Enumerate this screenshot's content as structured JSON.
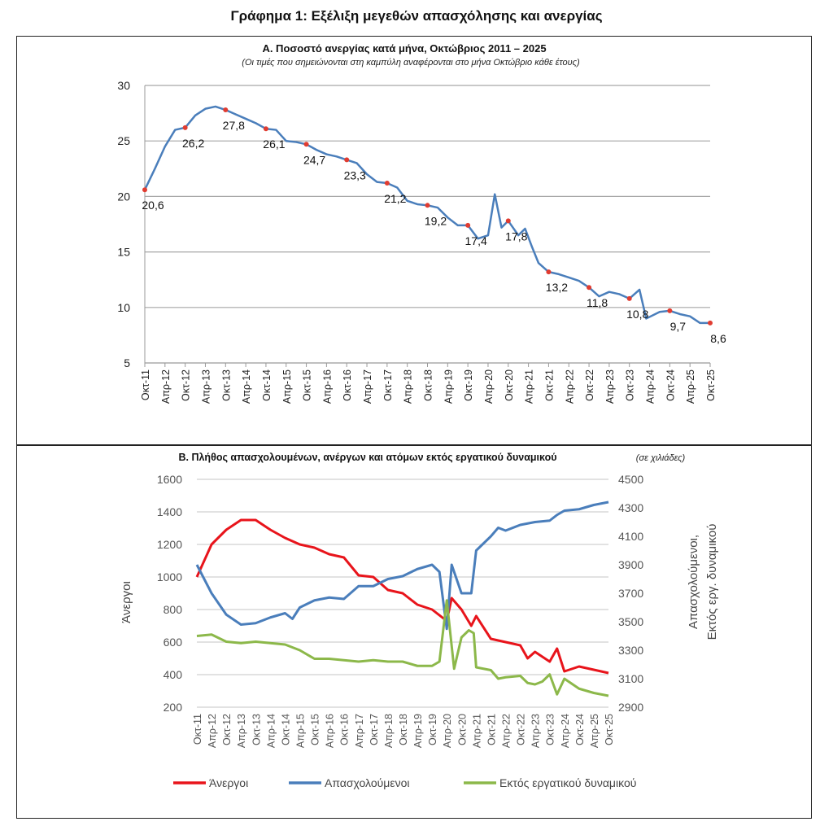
{
  "title": "Γράφημα 1: Εξέλιξη μεγεθών απασχόλησης και ανεργίας",
  "chart_data": [
    {
      "type": "line",
      "title": "Α. Ποσοστό ανεργίας κατά μήνα, Οκτώβριος 2011 – 2025",
      "subtitle": "(Οι τιμές που σημειώνονται στη καμπύλη αναφέρονται στο μήνα Οκτώβριο κάθε έτους)",
      "ylim": [
        5,
        30
      ],
      "yticks": [
        5,
        10,
        15,
        20,
        25,
        30
      ],
      "grid": true,
      "xticks": [
        "Οκτ-11",
        "Απρ-12",
        "Οκτ-12",
        "Απρ-13",
        "Οκτ-13",
        "Απρ-14",
        "Οκτ-14",
        "Απρ-15",
        "Οκτ-15",
        "Απρ-16",
        "Οκτ-16",
        "Απρ-17",
        "Οκτ-17",
        "Απρ-18",
        "Οκτ-18",
        "Απρ-19",
        "Οκτ-19",
        "Απρ-20",
        "Οκτ-20",
        "Απρ-21",
        "Οκτ-21",
        "Απρ-22",
        "Οκτ-22",
        "Απρ-23",
        "Οκτ-23",
        "Απρ-24",
        "Οκτ-24",
        "Απρ-25",
        "Οκτ-25"
      ],
      "line_color": "#4a7ebb",
      "marker_color": "#e03c31",
      "x": [
        "2011-10",
        "2012-01",
        "2012-04",
        "2012-07",
        "2012-10",
        "2013-01",
        "2013-04",
        "2013-07",
        "2013-10",
        "2014-01",
        "2014-04",
        "2014-07",
        "2014-10",
        "2015-01",
        "2015-04",
        "2015-07",
        "2015-10",
        "2016-01",
        "2016-04",
        "2016-07",
        "2016-10",
        "2017-01",
        "2017-04",
        "2017-07",
        "2017-10",
        "2018-01",
        "2018-04",
        "2018-07",
        "2018-10",
        "2019-01",
        "2019-04",
        "2019-07",
        "2019-10",
        "2020-01",
        "2020-04",
        "2020-06",
        "2020-08",
        "2020-10",
        "2021-01",
        "2021-03",
        "2021-05",
        "2021-07",
        "2021-10",
        "2022-01",
        "2022-04",
        "2022-07",
        "2022-10",
        "2023-01",
        "2023-04",
        "2023-07",
        "2023-10",
        "2024-01",
        "2024-03",
        "2024-07",
        "2024-10",
        "2025-01",
        "2025-04",
        "2025-07",
        "2025-10"
      ],
      "y": [
        20.6,
        22.5,
        24.5,
        26.0,
        26.2,
        27.3,
        27.9,
        28.1,
        27.8,
        27.4,
        27.0,
        26.6,
        26.1,
        26.0,
        25.0,
        24.9,
        24.7,
        24.2,
        23.8,
        23.6,
        23.3,
        23.0,
        22.0,
        21.3,
        21.2,
        20.8,
        19.6,
        19.3,
        19.2,
        19.0,
        18.1,
        17.4,
        17.4,
        16.2,
        16.5,
        20.2,
        17.2,
        17.8,
        16.5,
        17.1,
        15.5,
        14.0,
        13.2,
        13.0,
        12.7,
        12.4,
        11.8,
        11.0,
        11.4,
        11.2,
        10.8,
        11.6,
        9.0,
        9.6,
        9.7,
        9.4,
        9.2,
        8.6,
        8.6
      ],
      "labels": [
        {
          "x": "2011-10",
          "value": 20.6,
          "text": "20,6"
        },
        {
          "x": "2012-10",
          "value": 26.2,
          "text": "26,2"
        },
        {
          "x": "2013-10",
          "value": 27.8,
          "text": "27,8"
        },
        {
          "x": "2014-10",
          "value": 26.1,
          "text": "26,1"
        },
        {
          "x": "2015-10",
          "value": 24.7,
          "text": "24,7"
        },
        {
          "x": "2016-10",
          "value": 23.3,
          "text": "23,3"
        },
        {
          "x": "2017-10",
          "value": 21.2,
          "text": "21,2"
        },
        {
          "x": "2018-10",
          "value": 19.2,
          "text": "19,2"
        },
        {
          "x": "2019-10",
          "value": 17.4,
          "text": "17,4"
        },
        {
          "x": "2020-10",
          "value": 17.8,
          "text": "17,8"
        },
        {
          "x": "2021-10",
          "value": 13.2,
          "text": "13,2"
        },
        {
          "x": "2022-10",
          "value": 11.8,
          "text": "11,8"
        },
        {
          "x": "2023-10",
          "value": 10.8,
          "text": "10,8"
        },
        {
          "x": "2024-10",
          "value": 9.7,
          "text": "9,7"
        },
        {
          "x": "2025-10",
          "value": 8.6,
          "text": "8,6"
        }
      ]
    },
    {
      "type": "line",
      "title": "Β. Πλήθος απασχολουμένων, ανέργων και ατόμων εκτός εργατικού δυναμικού",
      "title_unit": "(σε χιλιάδες)",
      "ylabel": "Άνεργοι",
      "ylabel_right": [
        "Απασχολούμενοι,",
        "Εκτός εργ. δυναμικού"
      ],
      "ylim": [
        200,
        1600
      ],
      "yticks": [
        200,
        400,
        600,
        800,
        1000,
        1200,
        1400,
        1600
      ],
      "ylim_right": [
        2900,
        4500
      ],
      "yticks_right": [
        2900,
        3100,
        3300,
        3500,
        3700,
        3900,
        4100,
        4300,
        4500
      ],
      "grid": true,
      "legend": "bottom",
      "xticks": [
        "Οκτ-11",
        "Απρ-12",
        "Οκτ-12",
        "Απρ-13",
        "Οκτ-13",
        "Απρ-14",
        "Οκτ-14",
        "Απρ-15",
        "Οκτ-15",
        "Απρ-16",
        "Οκτ-16",
        "Απρ-17",
        "Οκτ-17",
        "Απρ-18",
        "Οκτ-18",
        "Απρ-19",
        "Οκτ-19",
        "Απρ-20",
        "Οκτ-20",
        "Απρ-21",
        "Οκτ-21",
        "Απρ-22",
        "Οκτ-22",
        "Απρ-23",
        "Οκτ-23",
        "Απρ-24",
        "Οκτ-24",
        "Απρ-25",
        "Οκτ-25"
      ],
      "series": [
        {
          "name": "Άνεργοι",
          "axis": "left",
          "color": "#e8141b",
          "x": [
            "2011-10",
            "2012-04",
            "2012-10",
            "2013-04",
            "2013-10",
            "2014-04",
            "2014-10",
            "2015-04",
            "2015-10",
            "2016-04",
            "2016-10",
            "2017-04",
            "2017-10",
            "2018-04",
            "2018-10",
            "2019-04",
            "2019-10",
            "2020-04",
            "2020-06",
            "2020-10",
            "2021-02",
            "2021-04",
            "2021-10",
            "2022-04",
            "2022-10",
            "2023-01",
            "2023-04",
            "2023-10",
            "2024-01",
            "2024-04",
            "2024-10",
            "2025-04",
            "2025-10"
          ],
          "y": [
            1000,
            1200,
            1290,
            1350,
            1350,
            1290,
            1240,
            1200,
            1180,
            1140,
            1120,
            1010,
            1000,
            920,
            900,
            830,
            800,
            730,
            870,
            800,
            700,
            760,
            620,
            600,
            580,
            500,
            540,
            480,
            560,
            420,
            450,
            430,
            410
          ]
        },
        {
          "name": "Απασχολούμενοι",
          "axis": "right",
          "color": "#4a7ebb",
          "x": [
            "2011-10",
            "2012-04",
            "2012-10",
            "2013-04",
            "2013-10",
            "2014-04",
            "2014-10",
            "2015-01",
            "2015-04",
            "2015-10",
            "2016-04",
            "2016-10",
            "2017-04",
            "2017-10",
            "2018-04",
            "2018-10",
            "2019-04",
            "2019-10",
            "2020-01",
            "2020-04",
            "2020-06",
            "2020-10",
            "2021-02",
            "2021-04",
            "2021-10",
            "2022-01",
            "2022-04",
            "2022-10",
            "2023-04",
            "2023-10",
            "2024-01",
            "2024-04",
            "2024-10",
            "2025-04",
            "2025-10"
          ],
          "y": [
            3900,
            3700,
            3550,
            3480,
            3490,
            3530,
            3560,
            3520,
            3600,
            3650,
            3670,
            3660,
            3750,
            3750,
            3800,
            3820,
            3870,
            3900,
            3850,
            3450,
            3900,
            3700,
            3700,
            4000,
            4100,
            4160,
            4140,
            4180,
            4200,
            4210,
            4250,
            4280,
            4290,
            4320,
            4340
          ]
        },
        {
          "name": "Εκτός εργατικού δυναμικού",
          "axis": "right",
          "color": "#8cb84a",
          "x": [
            "2011-10",
            "2012-04",
            "2012-10",
            "2013-04",
            "2013-10",
            "2014-04",
            "2014-10",
            "2015-04",
            "2015-10",
            "2016-04",
            "2016-10",
            "2017-04",
            "2017-10",
            "2018-04",
            "2018-10",
            "2019-04",
            "2019-10",
            "2020-01",
            "2020-04",
            "2020-07",
            "2020-10",
            "2021-01",
            "2021-03",
            "2021-04",
            "2021-10",
            "2022-01",
            "2022-04",
            "2022-10",
            "2023-01",
            "2023-04",
            "2023-07",
            "2023-10",
            "2024-01",
            "2024-04",
            "2024-10",
            "2025-04",
            "2025-10"
          ],
          "y": [
            3400,
            3410,
            3360,
            3350,
            3360,
            3350,
            3340,
            3300,
            3240,
            3240,
            3230,
            3220,
            3230,
            3220,
            3220,
            3190,
            3190,
            3220,
            3650,
            3170,
            3390,
            3440,
            3420,
            3180,
            3160,
            3100,
            3110,
            3120,
            3070,
            3060,
            3080,
            3130,
            2990,
            3100,
            3030,
            3000,
            2980
          ]
        }
      ]
    }
  ]
}
